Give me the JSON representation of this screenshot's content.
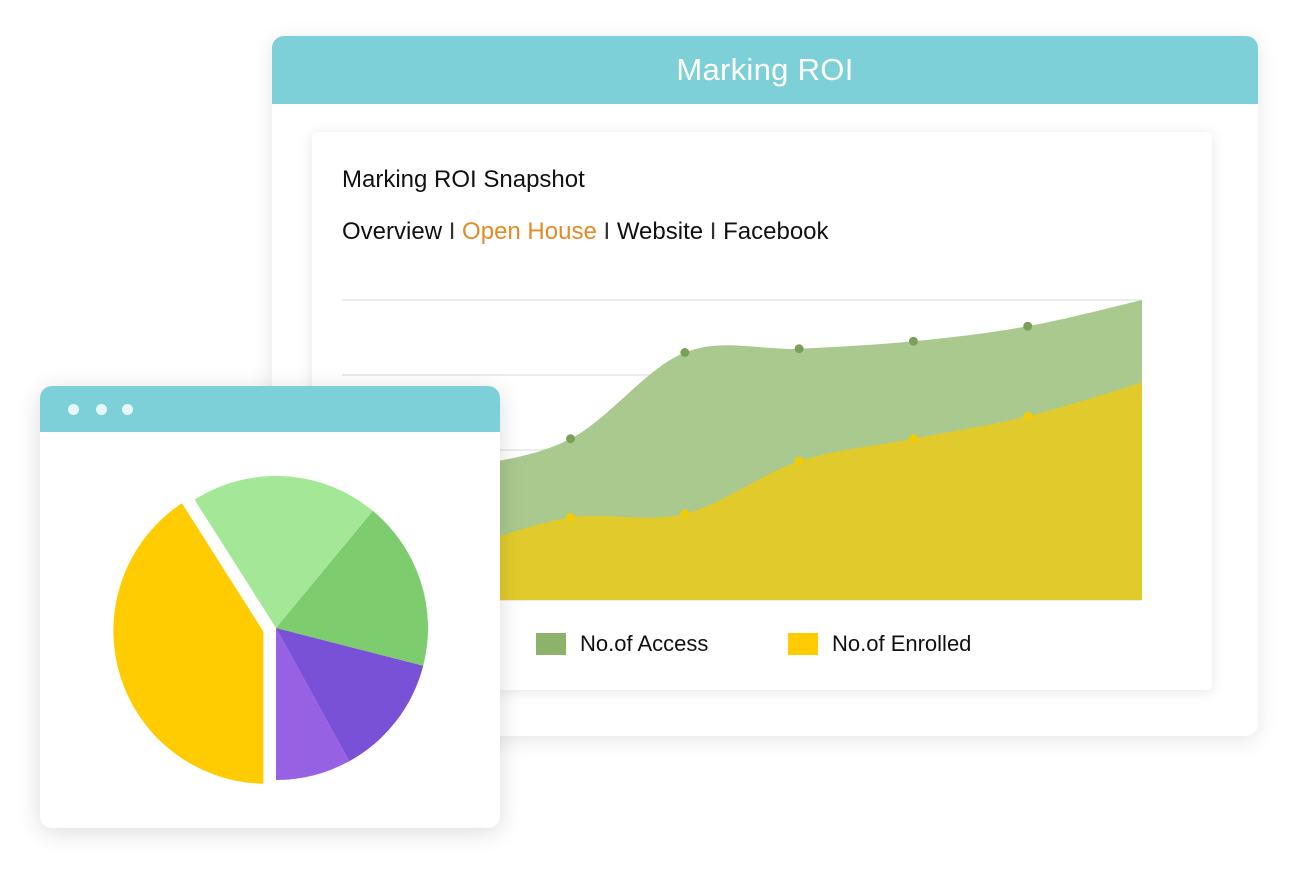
{
  "window": {
    "title": "Marking ROI"
  },
  "card": {
    "title": "Marking ROI Snapshot",
    "separator": "I",
    "tabs": [
      {
        "label": "Overview",
        "active": false
      },
      {
        "label": "Open House",
        "active": true
      },
      {
        "label": "Website",
        "active": false
      },
      {
        "label": "Facebook",
        "active": false
      }
    ]
  },
  "colors": {
    "header": "#7dcfd8",
    "access": "#8db26a",
    "enrolled": "#f2cb05",
    "active_tab": "#e48b25"
  },
  "chart_data": [
    {
      "type": "area",
      "title": "",
      "xlabel": "",
      "ylabel": "",
      "grid": true,
      "legend_position": "bottom",
      "x": [
        0,
        1,
        2,
        3,
        4,
        5,
        6,
        7
      ],
      "ylim": [
        0,
        4
      ],
      "series": [
        {
          "name": "No.of Access",
          "color": "#8db26a",
          "values": [
            1.5,
            1.75,
            2.15,
            3.3,
            3.35,
            3.45,
            3.65,
            4.0
          ]
        },
        {
          "name": "No.of Enrolled",
          "color": "#f2cb05",
          "values": [
            0.5,
            0.7,
            1.1,
            1.15,
            1.85,
            2.15,
            2.45,
            2.9
          ]
        }
      ]
    },
    {
      "type": "pie",
      "slices": [
        {
          "value": 41,
          "color": "#fecc00",
          "exploded": true
        },
        {
          "value": 20,
          "color": "#a4e897"
        },
        {
          "value": 18,
          "color": "#7dcd6e"
        },
        {
          "value": 13,
          "color": "#7851d6"
        },
        {
          "value": 8,
          "color": "#9661e3"
        }
      ]
    }
  ]
}
